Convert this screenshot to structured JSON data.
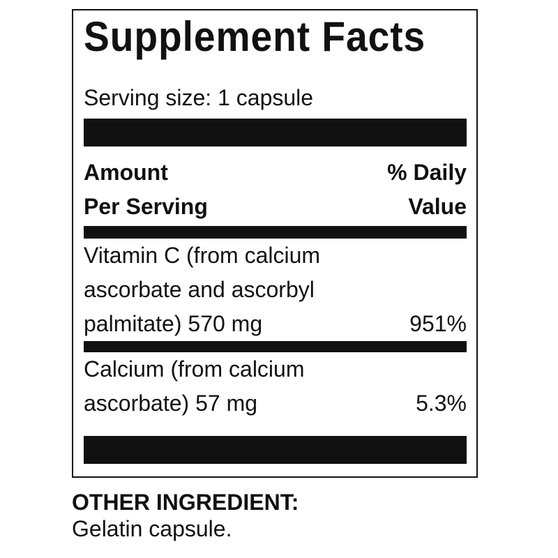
{
  "title": "Supplement Facts",
  "serving_size": "Serving size: 1 capsule",
  "header": {
    "amount_line1": "Amount",
    "amount_line2": "Per Serving",
    "dv_line1": "% Daily",
    "dv_line2": "Value"
  },
  "nutrients": [
    {
      "lines": [
        "Vitamin C (from calcium",
        "ascorbate and ascorbyl",
        "palmitate) 570 mg"
      ],
      "dv": "951%"
    },
    {
      "lines": [
        "Calcium (from calcium",
        "ascorbate) 57 mg"
      ],
      "dv": "5.3%"
    }
  ],
  "other": {
    "label": "OTHER INGREDIENT:",
    "value": "Gelatin capsule."
  }
}
